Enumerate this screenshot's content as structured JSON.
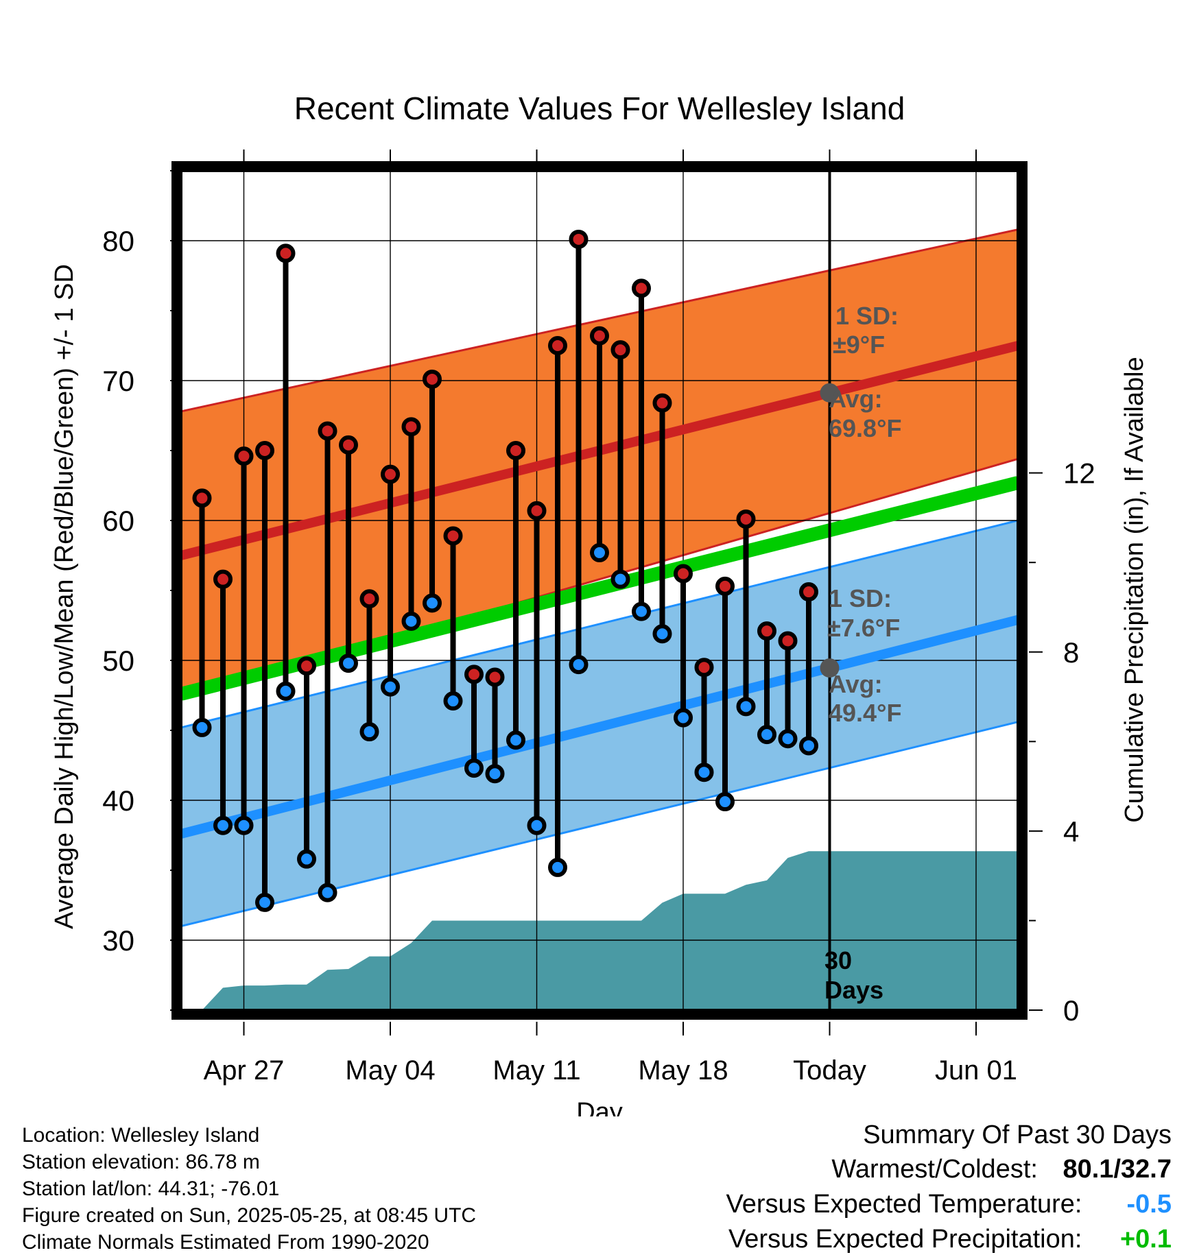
{
  "chart_data": {
    "type": "line",
    "title": "Recent Climate Values For Wellesley Island",
    "xlabel": "Day",
    "ylabel": "Average Daily High/Low/Mean (Red/Blue/Green) +/- 1 SD",
    "y2label": "Cumulative Precipitation (in), If Available",
    "ylim": [
      25,
      85
    ],
    "y2lim": [
      0,
      18.75
    ],
    "yticks": [
      "30",
      "40",
      "50",
      "60",
      "70",
      "80"
    ],
    "y2ticks": [
      "0",
      "4",
      "8",
      "12"
    ],
    "xticks": [
      "Apr 27",
      "May 04",
      "May 11",
      "May 18",
      "Today",
      "Jun 01"
    ],
    "grid": true,
    "days": [
      "2025-04-25",
      "2025-04-26",
      "2025-04-27",
      "2025-04-28",
      "2025-04-29",
      "2025-04-30",
      "2025-05-01",
      "2025-05-02",
      "2025-05-03",
      "2025-05-04",
      "2025-05-05",
      "2025-05-06",
      "2025-05-07",
      "2025-05-08",
      "2025-05-09",
      "2025-05-10",
      "2025-05-11",
      "2025-05-12",
      "2025-05-13",
      "2025-05-14",
      "2025-05-15",
      "2025-05-16",
      "2025-05-17",
      "2025-05-18",
      "2025-05-19",
      "2025-05-20",
      "2025-05-21",
      "2025-05-22",
      "2025-05-23",
      "2025-05-24"
    ],
    "series": [
      {
        "name": "High",
        "color": "#cc2222",
        "values": [
          61.6,
          55.8,
          64.6,
          65.0,
          79.1,
          49.6,
          66.4,
          65.4,
          54.4,
          63.3,
          66.7,
          70.1,
          58.9,
          49.0,
          48.8,
          65.0,
          60.7,
          72.5,
          80.1,
          73.2,
          72.2,
          76.6,
          68.4,
          56.2,
          49.5,
          55.3,
          60.1,
          52.1,
          51.4,
          54.9
        ]
      },
      {
        "name": "Low",
        "color": "#1e90ff",
        "values": [
          45.2,
          38.2,
          38.2,
          32.7,
          47.8,
          35.8,
          33.4,
          49.8,
          44.9,
          48.1,
          52.8,
          54.1,
          47.1,
          42.3,
          41.9,
          44.3,
          38.2,
          35.2,
          49.7,
          57.7,
          55.8,
          53.5,
          51.9,
          45.9,
          42.0,
          39.9,
          46.7,
          44.7,
          44.4,
          43.9
        ]
      }
    ],
    "normals": {
      "high_avg": [
        57.5,
        72.5
      ],
      "high_upper": [
        67.8,
        80.8
      ],
      "high_lower": [
        47.2,
        64.4
      ],
      "mean_avg": [
        47.6,
        62.7
      ],
      "low_avg": [
        37.6,
        52.9
      ],
      "low_upper": [
        45.2,
        60.0
      ],
      "low_lower": [
        31.0,
        45.6
      ],
      "x_range": [
        "2025-04-24",
        "2025-06-03"
      ]
    },
    "precip": {
      "days": [
        "2025-04-25",
        "2025-04-26",
        "2025-04-27",
        "2025-04-28",
        "2025-04-29",
        "2025-04-30",
        "2025-05-01",
        "2025-05-02",
        "2025-05-03",
        "2025-05-04",
        "2025-05-05",
        "2025-05-06",
        "2025-05-07",
        "2025-05-08",
        "2025-05-09",
        "2025-05-10",
        "2025-05-11",
        "2025-05-12",
        "2025-05-13",
        "2025-05-14",
        "2025-05-15",
        "2025-05-16",
        "2025-05-17",
        "2025-05-18",
        "2025-05-19",
        "2025-05-20",
        "2025-05-21",
        "2025-05-22",
        "2025-05-23",
        "2025-05-24",
        "2025-06-03"
      ],
      "values": [
        0.0,
        0.5,
        0.55,
        0.55,
        0.57,
        0.57,
        0.9,
        0.92,
        1.2,
        1.2,
        1.5,
        2.0,
        2.0,
        2.0,
        2.0,
        2.0,
        2.0,
        2.0,
        2.0,
        2.0,
        2.0,
        2.0,
        2.4,
        2.6,
        2.6,
        2.6,
        2.8,
        2.9,
        3.4,
        3.55,
        3.55
      ],
      "color": "#4a9aa4"
    },
    "annotations": {
      "high_sd": "1 SD:",
      "high_sd_val": "±9°F",
      "high_avg": "Avg:",
      "high_avg_val": "69.8°F",
      "low_sd": "1 SD:",
      "low_sd_val": "±7.6°F",
      "low_avg": "Avg:",
      "low_avg_val": "49.4°F",
      "period": "30",
      "period_unit": "Days"
    },
    "colors": {
      "high_band": "#f47a2e",
      "high_line": "#cc2222",
      "low_band": "#85c1e9",
      "low_line": "#1e90ff",
      "mean_line": "#00cc00",
      "precip": "#4a9aa4",
      "annotation": "#555555"
    }
  },
  "footer": {
    "location": "Location: Wellesley Island",
    "elevation": "Station elevation: 86.78 m",
    "latlon": "Station lat/lon: 44.31; -76.01",
    "created": "Figure created on Sun, 2025-05-25, at 08:45 UTC",
    "normals": "Climate Normals Estimated From 1990-2020"
  },
  "summary": {
    "heading": "Summary Of Past 30 Days",
    "warmest_label": "Warmest/Coldest:",
    "warmest_value": "80.1/32.7",
    "temp_label": "Versus Expected Temperature:",
    "temp_value": "-0.5",
    "temp_color": "#1e90ff",
    "precip_label": "Versus Expected Precipitation:",
    "precip_value": "+0.1",
    "precip_color": "#00bb00"
  }
}
